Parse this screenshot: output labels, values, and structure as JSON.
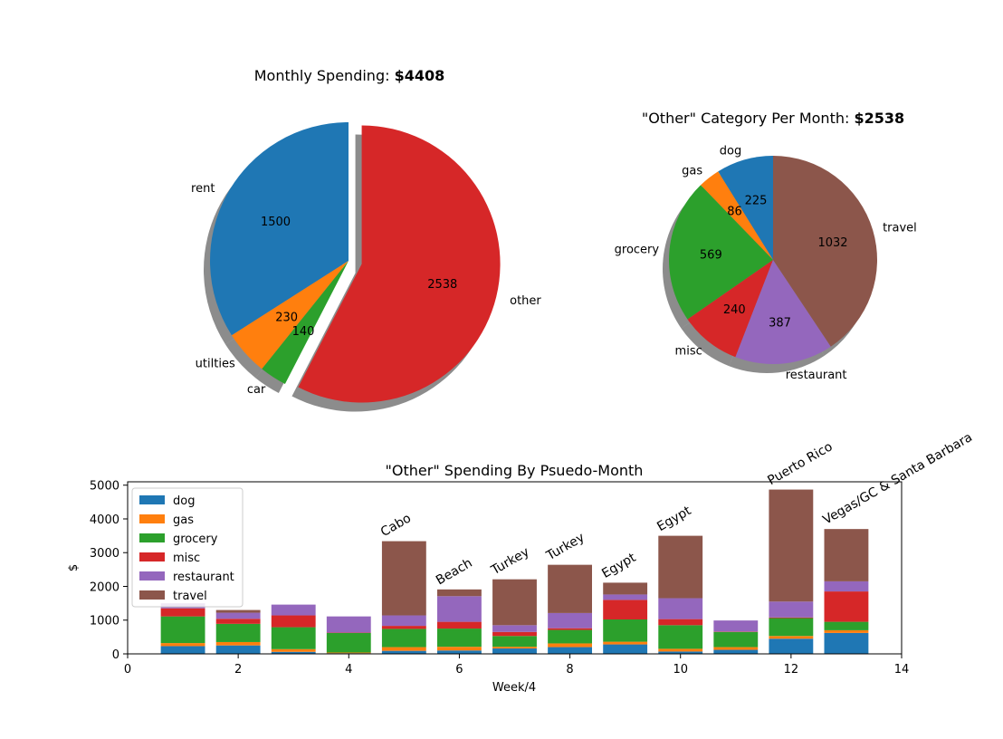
{
  "chart_data": [
    {
      "type": "pie",
      "title": "Monthly Spending: ",
      "title_value": "$4408",
      "labels": [
        "rent",
        "utilties",
        "car",
        "other"
      ],
      "values": [
        1500,
        230,
        140,
        2538
      ],
      "value_labels": [
        "1500",
        "230",
        "140",
        "2538"
      ],
      "colors": [
        "#1f77b4",
        "#ff7f0e",
        "#2ca02c",
        "#d62728"
      ],
      "exploded": "other",
      "shadow": true
    },
    {
      "type": "pie",
      "title": "\"Other\" Category Per Month: ",
      "title_value": "$2538",
      "labels": [
        "dog",
        "gas",
        "grocery",
        "misc",
        "restaurant",
        "travel"
      ],
      "values": [
        225,
        86,
        569,
        240,
        387,
        1032
      ],
      "value_labels": [
        "225",
        "86",
        "569",
        "240",
        "387",
        "1032"
      ],
      "colors": [
        "#1f77b4",
        "#ff7f0e",
        "#2ca02c",
        "#d62728",
        "#9467bd",
        "#8c564b"
      ],
      "shadow": true
    },
    {
      "type": "bar",
      "stacked": true,
      "title": "\"Other\" Spending By Psuedo-Month",
      "xlabel": "Week/4",
      "ylabel": "$",
      "xlim": [
        0,
        14
      ],
      "ylim": [
        0,
        5100
      ],
      "xticks": [
        0,
        2,
        4,
        6,
        8,
        10,
        12,
        14
      ],
      "yticks": [
        0,
        1000,
        2000,
        3000,
        4000,
        5000
      ],
      "x": [
        1,
        2,
        3,
        4,
        5,
        6,
        7,
        8,
        9,
        10,
        11,
        12,
        13
      ],
      "legend_position": "upper-left",
      "series": [
        {
          "name": "dog",
          "color": "#1f77b4",
          "values": [
            230,
            250,
            60,
            20,
            90,
            100,
            160,
            200,
            280,
            70,
            120,
            450,
            620
          ]
        },
        {
          "name": "gas",
          "color": "#ff7f0e",
          "values": [
            90,
            100,
            80,
            20,
            110,
            110,
            50,
            110,
            80,
            80,
            80,
            80,
            80
          ]
        },
        {
          "name": "grocery",
          "color": "#2ca02c",
          "values": [
            790,
            540,
            650,
            580,
            540,
            540,
            320,
            400,
            660,
            700,
            450,
            530,
            250
          ]
        },
        {
          "name": "misc",
          "color": "#d62728",
          "values": [
            240,
            150,
            350,
            10,
            90,
            200,
            120,
            50,
            580,
            180,
            10,
            20,
            900
          ]
        },
        {
          "name": "restaurant",
          "color": "#9467bd",
          "values": [
            150,
            180,
            320,
            480,
            310,
            760,
            200,
            450,
            160,
            620,
            330,
            470,
            300
          ]
        },
        {
          "name": "travel",
          "color": "#8c564b",
          "values": [
            0,
            80,
            0,
            0,
            2200,
            200,
            1360,
            1430,
            350,
            1850,
            0,
            3320,
            1550
          ]
        }
      ],
      "annotations": [
        {
          "x": 5,
          "text": "Cabo"
        },
        {
          "x": 6,
          "text": "Beach"
        },
        {
          "x": 7,
          "text": "Turkey"
        },
        {
          "x": 8,
          "text": "Turkey"
        },
        {
          "x": 9,
          "text": "Egypt"
        },
        {
          "x": 10,
          "text": "Egypt"
        },
        {
          "x": 12,
          "text": "Puerto Rico"
        },
        {
          "x": 13,
          "text": "Vegas/GC & Santa Barbara"
        }
      ]
    }
  ]
}
